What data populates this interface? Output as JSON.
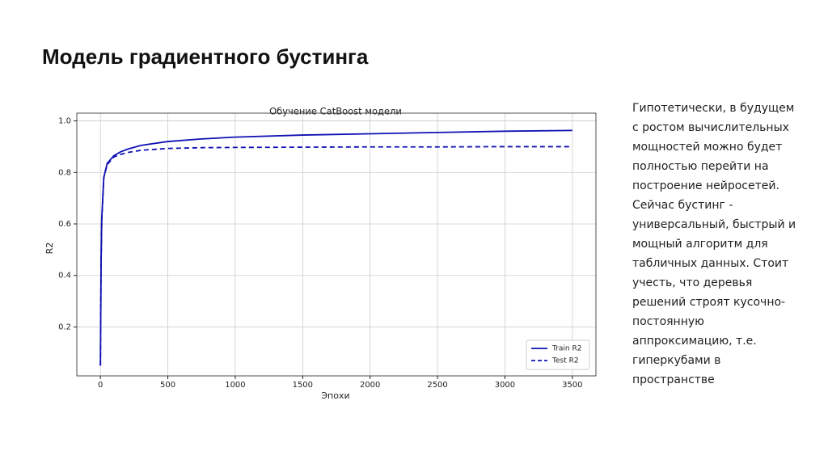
{
  "slide_title": "Модель градиентного бустинга",
  "paragraph": [
    "Гипотетически, в будущем",
    "с ростом вычислительных",
    "мощностей можно будет",
    "полностью перейти на",
    "построение нейросетей.",
    "Сейчас бустинг -",
    "универсальный, быстрый и",
    "мощный алгоритм для",
    "табличных данных. Стоит",
    "учесть, что деревья",
    "решений строят кусочно-",
    "постоянную",
    "аппроксимацию, т.е.",
    "гиперкубами в",
    "пространстве"
  ],
  "chart_data": {
    "type": "line",
    "title": "Обучение CatBoost модели",
    "x_label": "Эпохи",
    "y_label": "R2",
    "x": [
      0,
      5,
      10,
      25,
      50,
      100,
      150,
      200,
      300,
      500,
      750,
      1000,
      1500,
      2000,
      2500,
      3000,
      3500
    ],
    "series": [
      {
        "name": "Train R2",
        "color": "#1010b4",
        "linestyle": "solid",
        "values": [
          0.05,
          0.45,
          0.62,
          0.78,
          0.835,
          0.865,
          0.88,
          0.89,
          0.905,
          0.92,
          0.93,
          0.937,
          0.945,
          0.95,
          0.955,
          0.96,
          0.963
        ]
      },
      {
        "name": "Test R2",
        "color": "#1010b4",
        "linestyle": "dashed",
        "values": [
          0.05,
          0.45,
          0.62,
          0.78,
          0.83,
          0.86,
          0.87,
          0.877,
          0.886,
          0.893,
          0.896,
          0.897,
          0.898,
          0.899,
          0.899,
          0.9,
          0.9
        ]
      }
    ],
    "xlim": [
      -175,
      3675
    ],
    "xticks": [
      0,
      500,
      1000,
      1500,
      2000,
      2500,
      3000,
      3500
    ],
    "ylim": [
      0.01,
      1.03
    ],
    "yticks": [
      0.2,
      0.4,
      0.6,
      0.8,
      {
        "value": 1,
        "label": "1.0"
      }
    ],
    "grid": true,
    "legend": "lower right"
  }
}
